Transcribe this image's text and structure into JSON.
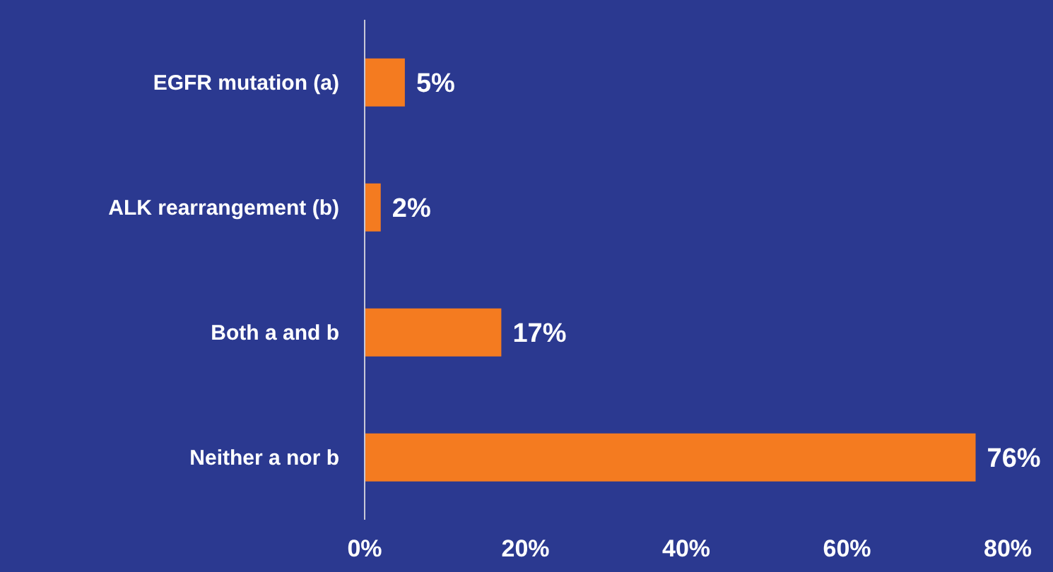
{
  "chart_data": {
    "type": "bar",
    "orientation": "horizontal",
    "categories": [
      "EGFR mutation (a)",
      "ALK rearrangement (b)",
      "Both a and b",
      "Neither a nor b"
    ],
    "values": [
      5,
      2,
      17,
      76
    ],
    "value_labels": [
      "5%",
      "2%",
      "17%",
      "76%"
    ],
    "color": "#f47b20",
    "xlim": [
      0,
      80
    ],
    "xticks": [
      {
        "value": 0,
        "label": "0%"
      },
      {
        "value": 20,
        "label": "20%"
      },
      {
        "value": 40,
        "label": "40%"
      },
      {
        "value": 60,
        "label": "60%"
      },
      {
        "value": 80,
        "label": "80%"
      }
    ],
    "grid": false,
    "legend": false
  }
}
